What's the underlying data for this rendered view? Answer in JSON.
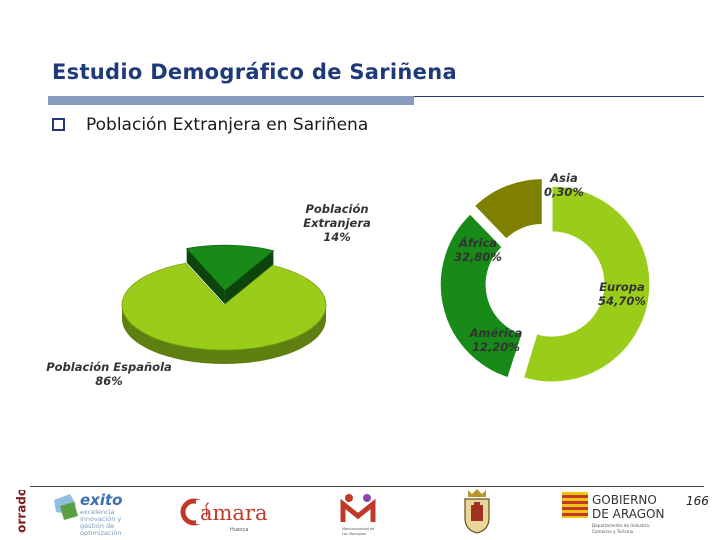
{
  "slide": {
    "title": "Estudio Demográfico de Sariñena",
    "bullet": "Población Extranjera en Sariñena",
    "page_number": "166",
    "side_stamp": "Borrador"
  },
  "footer": {
    "logo_exito": {
      "title": "exito",
      "lines": [
        "excelencia",
        "innovación y",
        "gestión de",
        "optimización"
      ]
    },
    "logo_camara": {
      "title": "Cámara",
      "sub": "Huesca"
    },
    "logo_mancomunidad": {
      "sub": "Mancomunidad de los Monegros"
    },
    "logo_gobierno": {
      "title1": "GOBIERNO",
      "title2": "DE ARAGON",
      "sub": "Departamento de Industria, Comercio y Turismo"
    }
  },
  "chart_data": [
    {
      "type": "pie",
      "categories": [
        "Población Extranjera",
        "Población Española"
      ],
      "values": [
        14,
        86
      ],
      "value_labels": [
        "14%",
        "86%"
      ],
      "colors": [
        "#188a18",
        "#9acd1a"
      ],
      "exploded": "Población Extranjera",
      "style": "3d"
    },
    {
      "type": "pie",
      "subtype": "donut",
      "categories": [
        "Europa",
        "Asia",
        "África",
        "América"
      ],
      "values": [
        54.7,
        0.3,
        32.8,
        12.2
      ],
      "value_labels": [
        "54,70%",
        "0,30%",
        "32,80%",
        "12,20%"
      ],
      "colors": [
        "#9acd1a",
        "#ffffff",
        "#188a18",
        "#808000"
      ]
    }
  ]
}
